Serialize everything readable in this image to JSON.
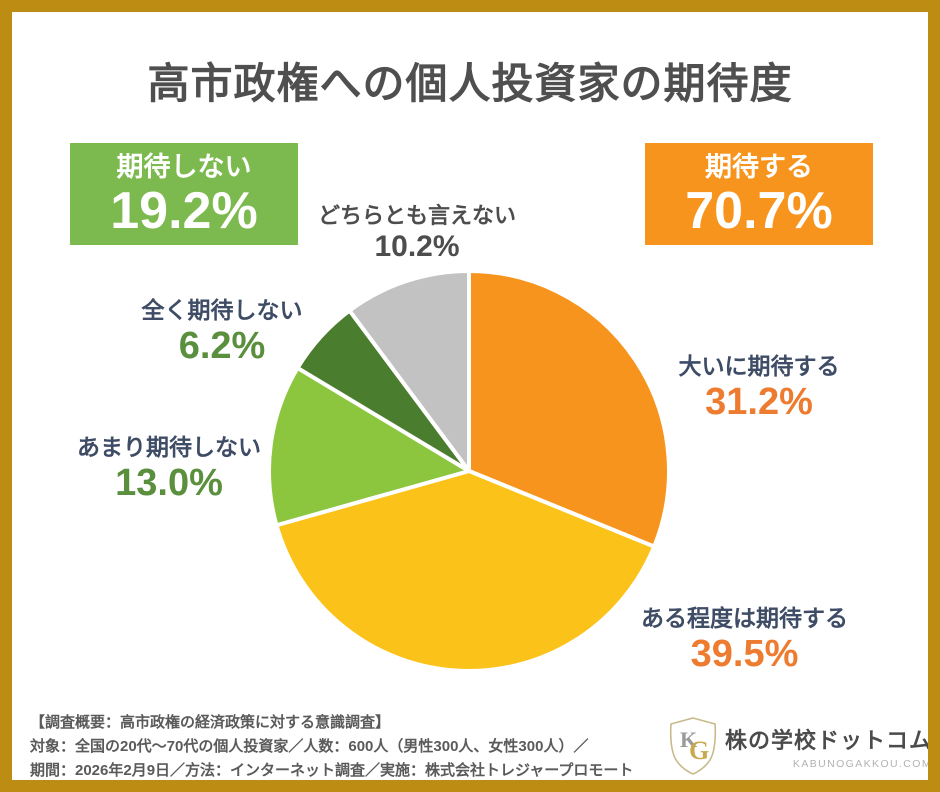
{
  "title": "高市政権への個人投資家の期待度",
  "chart_data": {
    "type": "pie",
    "title": "高市政権への個人投資家の期待度",
    "labels": [
      "大いに期待する",
      "ある程度は期待する",
      "あまり期待しない",
      "全く期待しない",
      "どちらとも言えない"
    ],
    "values": [
      31.2,
      39.5,
      13.0,
      6.2,
      10.2
    ],
    "value_texts": [
      "31.2%",
      "39.5%",
      "13.0%",
      "6.2%",
      "10.2%"
    ],
    "colors": [
      "#F7941E",
      "#FBC21A",
      "#8CC63F",
      "#4A7D2E",
      "#C2C2C2"
    ],
    "slice_names": [
      "ooini-kitai-suru",
      "aruteido-kitai-suru",
      "amari-kitai-shinai",
      "mattaku-kitai-shinai",
      "dochiratomo-ienai"
    ],
    "start_angle_deg": -90,
    "direction": "clockwise",
    "stroke_color": "#ffffff",
    "legend_position": "none",
    "summary_badges": [
      {
        "label": "期待しない",
        "value": "19.2%",
        "color": "#7CB94E"
      },
      {
        "label": "期待する",
        "value": "70.7%",
        "color": "#F7941E"
      }
    ]
  },
  "footer": {
    "line1": "【調査概要：高市政権の経済政策に対する意識調査】",
    "line2": "対象：全国の20代〜70代の個人投資家／人数：600人（男性300人、女性300人）／",
    "line3": "期間：2026年2月9日／方法：インターネット調査／実施：株式会社トレジャープロモート"
  },
  "logo": {
    "monogram_k": "K",
    "monogram_g": "G",
    "name": "株の学校ドットコム",
    "domain": "KABUNOGAKKOU.COM"
  }
}
